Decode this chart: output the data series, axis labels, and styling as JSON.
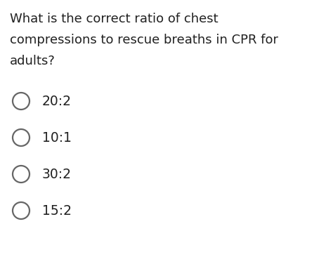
{
  "question_lines": [
    "What is the correct ratio of chest",
    "compressions to rescue breaths in CPR for",
    "adults?"
  ],
  "options": [
    "20:2",
    "10:1",
    "30:2",
    "15:2"
  ],
  "background_color": "#ffffff",
  "text_color": "#212121",
  "question_fontsize": 13.0,
  "option_fontsize": 13.5,
  "circle_linewidth": 1.6,
  "circle_color": "#666666",
  "fig_width": 4.74,
  "fig_height": 3.86,
  "dpi": 100
}
